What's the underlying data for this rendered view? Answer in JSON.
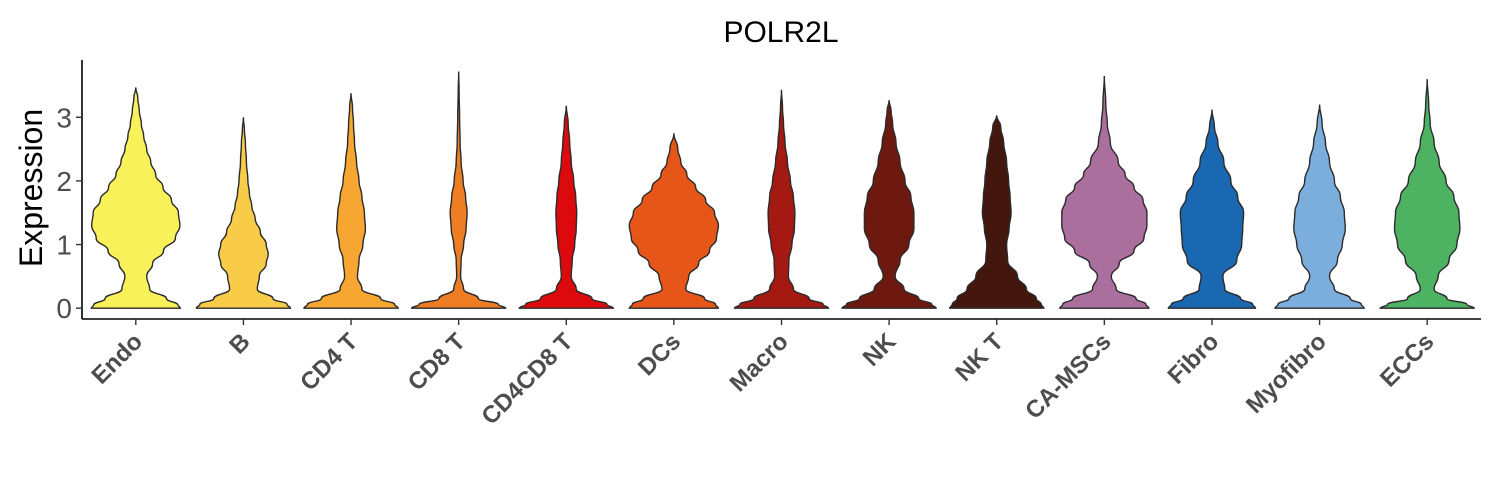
{
  "chart_data": {
    "type": "violin",
    "title": "POLR2L",
    "ylabel": "Expression",
    "xlabel": "",
    "ylim": [
      -0.17,
      3.9
    ],
    "yticks": [
      0,
      1,
      2,
      3
    ],
    "grid": false,
    "legend": "none",
    "categories": [
      "Endo",
      "B",
      "CD4 T",
      "CD8 T",
      "CD4CD8 T",
      "DCs",
      "Macro",
      "NK",
      "NK T",
      "CA-MSCs",
      "Fibro",
      "Myofibro",
      "ECCs"
    ],
    "series": [
      {
        "category": "Endo",
        "color": "#F8F15A",
        "max": 3.47,
        "profile": [
          [
            0,
            0.9
          ],
          [
            0.05,
            0.85
          ],
          [
            0.15,
            0.62
          ],
          [
            0.3,
            0.28
          ],
          [
            0.5,
            0.22
          ],
          [
            0.7,
            0.34
          ],
          [
            0.9,
            0.56
          ],
          [
            1.1,
            0.8
          ],
          [
            1.3,
            0.89
          ],
          [
            1.5,
            0.86
          ],
          [
            1.7,
            0.72
          ],
          [
            1.9,
            0.55
          ],
          [
            2.1,
            0.4
          ],
          [
            2.3,
            0.3
          ],
          [
            2.5,
            0.22
          ],
          [
            2.7,
            0.16
          ],
          [
            2.9,
            0.11
          ],
          [
            3.1,
            0.07
          ],
          [
            3.3,
            0.04
          ],
          [
            3.47,
            0
          ]
        ]
      },
      {
        "category": "B",
        "color": "#F8CB48",
        "max": 3.0,
        "profile": [
          [
            0,
            0.95
          ],
          [
            0.06,
            0.88
          ],
          [
            0.15,
            0.6
          ],
          [
            0.3,
            0.28
          ],
          [
            0.5,
            0.32
          ],
          [
            0.7,
            0.46
          ],
          [
            0.85,
            0.5
          ],
          [
            1.0,
            0.46
          ],
          [
            1.2,
            0.34
          ],
          [
            1.4,
            0.24
          ],
          [
            1.6,
            0.17
          ],
          [
            1.8,
            0.12
          ],
          [
            2.0,
            0.09
          ],
          [
            2.3,
            0.06
          ],
          [
            2.6,
            0.04
          ],
          [
            2.8,
            0.02
          ],
          [
            3.0,
            0
          ]
        ]
      },
      {
        "category": "CD4 T",
        "color": "#F6A631",
        "max": 3.38,
        "profile": [
          [
            0,
            0.95
          ],
          [
            0.06,
            0.88
          ],
          [
            0.15,
            0.6
          ],
          [
            0.3,
            0.22
          ],
          [
            0.5,
            0.13
          ],
          [
            0.75,
            0.16
          ],
          [
            1.0,
            0.24
          ],
          [
            1.25,
            0.29
          ],
          [
            1.5,
            0.27
          ],
          [
            1.75,
            0.22
          ],
          [
            2.0,
            0.16
          ],
          [
            2.3,
            0.11
          ],
          [
            2.6,
            0.07
          ],
          [
            2.9,
            0.05
          ],
          [
            3.15,
            0.03
          ],
          [
            3.38,
            0
          ]
        ]
      },
      {
        "category": "CD8 T",
        "color": "#EE7E24",
        "max": 3.72,
        "profile": [
          [
            0,
            0.95
          ],
          [
            0.06,
            0.8
          ],
          [
            0.15,
            0.4
          ],
          [
            0.3,
            0.1
          ],
          [
            0.5,
            0.04
          ],
          [
            0.75,
            0.05
          ],
          [
            1.0,
            0.1
          ],
          [
            1.25,
            0.15
          ],
          [
            1.5,
            0.17
          ],
          [
            1.75,
            0.14
          ],
          [
            2.0,
            0.09
          ],
          [
            2.3,
            0.05
          ],
          [
            2.6,
            0.03
          ],
          [
            3.0,
            0.02
          ],
          [
            3.4,
            0.01
          ],
          [
            3.72,
            0
          ]
        ]
      },
      {
        "category": "CD4CD8 T",
        "color": "#DD0A0D",
        "max": 3.18,
        "profile": [
          [
            0,
            0.95
          ],
          [
            0.06,
            0.82
          ],
          [
            0.15,
            0.52
          ],
          [
            0.3,
            0.2
          ],
          [
            0.5,
            0.1
          ],
          [
            0.75,
            0.12
          ],
          [
            1.0,
            0.17
          ],
          [
            1.25,
            0.2
          ],
          [
            1.5,
            0.21
          ],
          [
            1.75,
            0.19
          ],
          [
            2.0,
            0.15
          ],
          [
            2.3,
            0.1
          ],
          [
            2.6,
            0.07
          ],
          [
            2.9,
            0.04
          ],
          [
            3.18,
            0
          ]
        ]
      },
      {
        "category": "DCs",
        "color": "#E65619",
        "max": 2.75,
        "profile": [
          [
            0,
            0.9
          ],
          [
            0.06,
            0.84
          ],
          [
            0.15,
            0.62
          ],
          [
            0.3,
            0.24
          ],
          [
            0.5,
            0.3
          ],
          [
            0.7,
            0.5
          ],
          [
            0.9,
            0.72
          ],
          [
            1.1,
            0.86
          ],
          [
            1.3,
            0.9
          ],
          [
            1.5,
            0.82
          ],
          [
            1.7,
            0.64
          ],
          [
            1.9,
            0.44
          ],
          [
            2.1,
            0.26
          ],
          [
            2.3,
            0.14
          ],
          [
            2.5,
            0.08
          ],
          [
            2.75,
            0
          ]
        ]
      },
      {
        "category": "Macro",
        "color": "#A41912",
        "max": 3.43,
        "profile": [
          [
            0,
            0.95
          ],
          [
            0.06,
            0.84
          ],
          [
            0.15,
            0.56
          ],
          [
            0.3,
            0.24
          ],
          [
            0.5,
            0.14
          ],
          [
            0.75,
            0.15
          ],
          [
            1.0,
            0.21
          ],
          [
            1.25,
            0.26
          ],
          [
            1.5,
            0.27
          ],
          [
            1.75,
            0.24
          ],
          [
            2.0,
            0.18
          ],
          [
            2.3,
            0.12
          ],
          [
            2.6,
            0.07
          ],
          [
            2.9,
            0.04
          ],
          [
            3.15,
            0.02
          ],
          [
            3.43,
            0
          ]
        ]
      },
      {
        "category": "NK",
        "color": "#6E190F",
        "max": 3.27,
        "profile": [
          [
            0,
            0.95
          ],
          [
            0.06,
            0.86
          ],
          [
            0.15,
            0.6
          ],
          [
            0.3,
            0.3
          ],
          [
            0.5,
            0.12
          ],
          [
            0.75,
            0.22
          ],
          [
            1.0,
            0.4
          ],
          [
            1.25,
            0.5
          ],
          [
            1.5,
            0.5
          ],
          [
            1.75,
            0.44
          ],
          [
            2.0,
            0.32
          ],
          [
            2.3,
            0.22
          ],
          [
            2.6,
            0.14
          ],
          [
            2.9,
            0.07
          ],
          [
            3.1,
            0.04
          ],
          [
            3.27,
            0
          ]
        ]
      },
      {
        "category": "NK T",
        "color": "#43160E",
        "max": 3.03,
        "profile": [
          [
            0,
            0.95
          ],
          [
            0.06,
            0.9
          ],
          [
            0.15,
            0.8
          ],
          [
            0.3,
            0.6
          ],
          [
            0.5,
            0.42
          ],
          [
            0.75,
            0.22
          ],
          [
            1.0,
            0.2
          ],
          [
            1.25,
            0.25
          ],
          [
            1.5,
            0.29
          ],
          [
            1.75,
            0.27
          ],
          [
            2.0,
            0.24
          ],
          [
            2.3,
            0.2
          ],
          [
            2.6,
            0.14
          ],
          [
            2.85,
            0.08
          ],
          [
            3.03,
            0
          ]
        ]
      },
      {
        "category": "CA-MSCs",
        "color": "#AA6F9D",
        "max": 3.65,
        "profile": [
          [
            0,
            0.9
          ],
          [
            0.06,
            0.84
          ],
          [
            0.15,
            0.64
          ],
          [
            0.3,
            0.24
          ],
          [
            0.5,
            0.14
          ],
          [
            0.7,
            0.3
          ],
          [
            0.9,
            0.6
          ],
          [
            1.1,
            0.8
          ],
          [
            1.3,
            0.86
          ],
          [
            1.5,
            0.86
          ],
          [
            1.7,
            0.78
          ],
          [
            1.9,
            0.6
          ],
          [
            2.1,
            0.42
          ],
          [
            2.3,
            0.28
          ],
          [
            2.6,
            0.12
          ],
          [
            2.9,
            0.06
          ],
          [
            3.2,
            0.03
          ],
          [
            3.65,
            0
          ]
        ]
      },
      {
        "category": "Fibro",
        "color": "#1A67B2",
        "max": 3.12,
        "profile": [
          [
            0,
            0.88
          ],
          [
            0.06,
            0.82
          ],
          [
            0.15,
            0.58
          ],
          [
            0.3,
            0.26
          ],
          [
            0.5,
            0.22
          ],
          [
            0.75,
            0.5
          ],
          [
            1.0,
            0.6
          ],
          [
            1.25,
            0.62
          ],
          [
            1.5,
            0.64
          ],
          [
            1.75,
            0.52
          ],
          [
            2.0,
            0.38
          ],
          [
            2.3,
            0.24
          ],
          [
            2.6,
            0.12
          ],
          [
            2.85,
            0.05
          ],
          [
            3.12,
            0
          ]
        ]
      },
      {
        "category": "Myofibro",
        "color": "#7BAEDD",
        "max": 3.2,
        "profile": [
          [
            0,
            0.9
          ],
          [
            0.06,
            0.84
          ],
          [
            0.15,
            0.62
          ],
          [
            0.3,
            0.3
          ],
          [
            0.5,
            0.2
          ],
          [
            0.75,
            0.36
          ],
          [
            1.0,
            0.46
          ],
          [
            1.25,
            0.52
          ],
          [
            1.5,
            0.5
          ],
          [
            1.75,
            0.42
          ],
          [
            2.0,
            0.3
          ],
          [
            2.3,
            0.2
          ],
          [
            2.6,
            0.12
          ],
          [
            2.9,
            0.05
          ],
          [
            3.2,
            0
          ]
        ]
      },
      {
        "category": "ECCs",
        "color": "#4DB363",
        "max": 3.6,
        "profile": [
          [
            0,
            0.95
          ],
          [
            0.06,
            0.8
          ],
          [
            0.15,
            0.4
          ],
          [
            0.3,
            0.14
          ],
          [
            0.5,
            0.22
          ],
          [
            0.75,
            0.44
          ],
          [
            1.0,
            0.6
          ],
          [
            1.25,
            0.66
          ],
          [
            1.5,
            0.64
          ],
          [
            1.75,
            0.54
          ],
          [
            2.0,
            0.38
          ],
          [
            2.3,
            0.24
          ],
          [
            2.6,
            0.14
          ],
          [
            2.9,
            0.06
          ],
          [
            3.2,
            0.03
          ],
          [
            3.6,
            0
          ]
        ]
      }
    ]
  }
}
